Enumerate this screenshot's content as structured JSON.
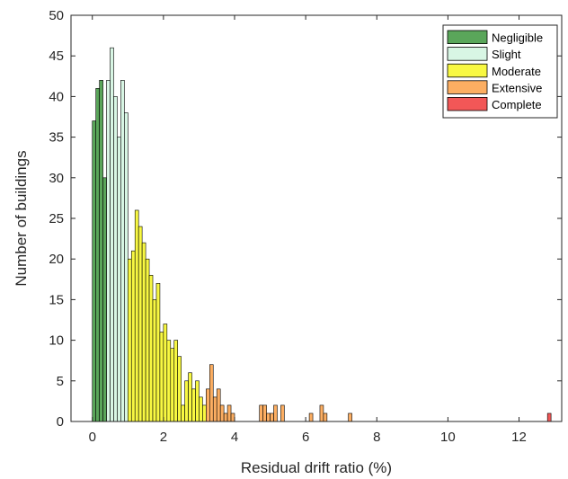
{
  "chart_data": {
    "type": "bar",
    "xlabel": "Residual drift ratio (%)",
    "ylabel": "Number of buildings",
    "xlim": [
      -0.6,
      13.2
    ],
    "ylim": [
      0,
      50
    ],
    "xticks": [
      "0",
      "2",
      "4",
      "6",
      "8",
      "10",
      "12"
    ],
    "xtick_values": [
      0,
      2,
      4,
      6,
      8,
      10,
      12
    ],
    "yticks": [
      "0",
      "5",
      "10",
      "15",
      "20",
      "25",
      "30",
      "35",
      "40",
      "45",
      "50"
    ],
    "ytick_values": [
      0,
      5,
      10,
      15,
      20,
      25,
      30,
      35,
      40,
      45,
      50
    ],
    "bin_width": 0.1,
    "grid": false,
    "legend_position": "top-right",
    "series": [
      {
        "name": "Negligible",
        "color": "#5aa65a",
        "x": [
          0.05,
          0.15,
          0.25,
          0.35
        ],
        "values": [
          37,
          41,
          42,
          30
        ]
      },
      {
        "name": "Slight",
        "color": "#d8f6e4",
        "x": [
          0.45,
          0.55,
          0.65,
          0.75,
          0.85,
          0.95
        ],
        "values": [
          42,
          46,
          40,
          35,
          42,
          38
        ]
      },
      {
        "name": "Moderate",
        "color": "#f8f842",
        "x": [
          1.05,
          1.15,
          1.25,
          1.35,
          1.45,
          1.55,
          1.65,
          1.75,
          1.85,
          1.95,
          2.05,
          2.15,
          2.25,
          2.35,
          2.45,
          2.55,
          2.65,
          2.75,
          2.85,
          2.95,
          3.05,
          3.15
        ],
        "values": [
          20,
          21,
          26,
          24,
          22,
          20,
          18,
          15,
          17,
          11,
          12,
          10,
          9,
          10,
          8,
          2,
          5,
          6,
          4,
          5,
          3,
          2
        ]
      },
      {
        "name": "Extensive",
        "color": "#fcae62",
        "x": [
          3.25,
          3.35,
          3.45,
          3.55,
          3.65,
          3.75,
          3.85,
          3.95,
          4.75,
          4.85,
          4.95,
          5.05,
          5.15,
          5.35,
          6.15,
          6.45,
          6.55,
          7.25
        ],
        "values": [
          4,
          7,
          3,
          4,
          2,
          1,
          2,
          1,
          2,
          2,
          1,
          1,
          2,
          2,
          1,
          2,
          1,
          1
        ]
      },
      {
        "name": "Complete",
        "color": "#f25757",
        "x": [
          12.85
        ],
        "values": [
          1
        ]
      }
    ]
  }
}
